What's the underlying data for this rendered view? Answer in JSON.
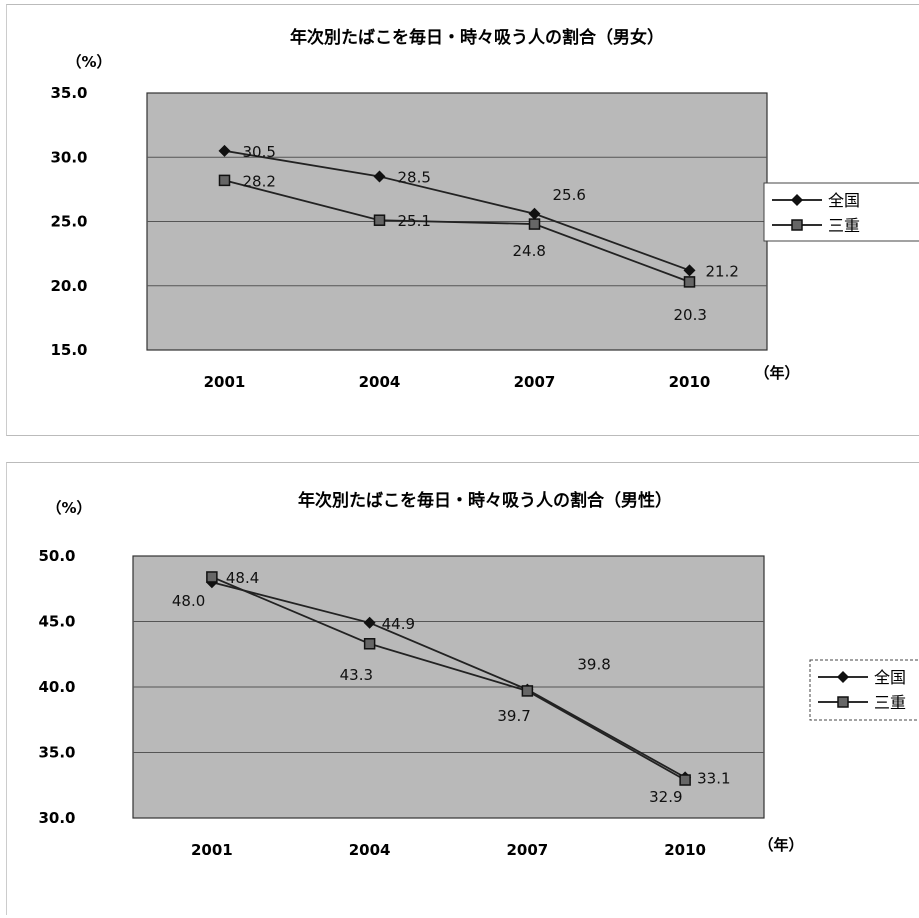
{
  "chart_data": [
    {
      "type": "line",
      "title": "年次別たばこを毎日・時々吸う人の割合（男女）",
      "ylabel": "（%）",
      "xlabel": "（年）",
      "categories": [
        "2001",
        "2004",
        "2007",
        "2010"
      ],
      "ylim": [
        15,
        35
      ],
      "yticks": [
        "35.0",
        "30.0",
        "25.0",
        "20.0",
        "15.0"
      ],
      "grid": true,
      "legend_position": "right",
      "series": [
        {
          "name": "全国",
          "values": [
            30.5,
            28.5,
            25.6,
            21.2
          ],
          "marker": "diamond",
          "labels": [
            "30.5",
            "28.5",
            "25.6",
            "21.2"
          ]
        },
        {
          "name": "三重",
          "values": [
            28.2,
            25.1,
            24.8,
            20.3
          ],
          "marker": "square",
          "labels": [
            "28.2",
            "25.1",
            "24.8",
            "20.3"
          ]
        }
      ]
    },
    {
      "type": "line",
      "title": "年次別たばこを毎日・時々吸う人の割合（男性）",
      "ylabel": "（%）",
      "xlabel": "（年）",
      "categories": [
        "2001",
        "2004",
        "2007",
        "2010"
      ],
      "ylim": [
        30,
        50
      ],
      "yticks": [
        "50.0",
        "45.0",
        "40.0",
        "35.0",
        "30.0"
      ],
      "grid": true,
      "legend_position": "right",
      "series": [
        {
          "name": "全国",
          "values": [
            48.0,
            44.9,
            39.8,
            33.1
          ],
          "marker": "diamond",
          "labels": [
            "48.0",
            "44.9",
            "39.8",
            "33.1"
          ]
        },
        {
          "name": "三重",
          "values": [
            48.4,
            43.3,
            39.7,
            32.9
          ],
          "marker": "square",
          "labels": [
            "48.4",
            "43.3",
            "39.7",
            "32.9"
          ]
        }
      ]
    }
  ],
  "colors": {
    "plot_bg": "#b9b9b9",
    "line": "#222222",
    "grid": "#555555",
    "background": "#ffffff"
  }
}
